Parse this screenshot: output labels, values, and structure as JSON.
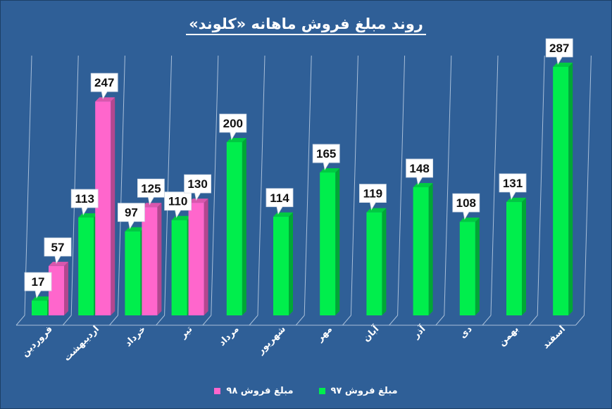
{
  "colors": {
    "background": "#2f5f97",
    "series_97": "#00ee4c",
    "series_98": "#ff66cc",
    "label_box": "#ffffff",
    "label_text": "#111111",
    "text": "#ffffff"
  },
  "chart_data": {
    "type": "bar",
    "title": "روند مبلغ فروش ماهانه «کلوند»",
    "categories": [
      "فروردین",
      "اردیبهشت",
      "خرداد",
      "تیر",
      "مرداد",
      "شهریور",
      "مهر",
      "آبان",
      "آذر",
      "دی",
      "بهمن",
      "اسفند"
    ],
    "series": [
      {
        "name": "مبلغ فروش ۹۷",
        "values": [
          17,
          113,
          97,
          110,
          200,
          114,
          165,
          119,
          148,
          108,
          131,
          287
        ]
      },
      {
        "name": "مبلغ فروش ۹۸",
        "values": [
          57,
          247,
          125,
          130,
          null,
          null,
          null,
          null,
          null,
          null,
          null,
          null
        ]
      }
    ],
    "ylim": [
      0,
      300
    ],
    "grid": true,
    "legend_position": "bottom"
  }
}
